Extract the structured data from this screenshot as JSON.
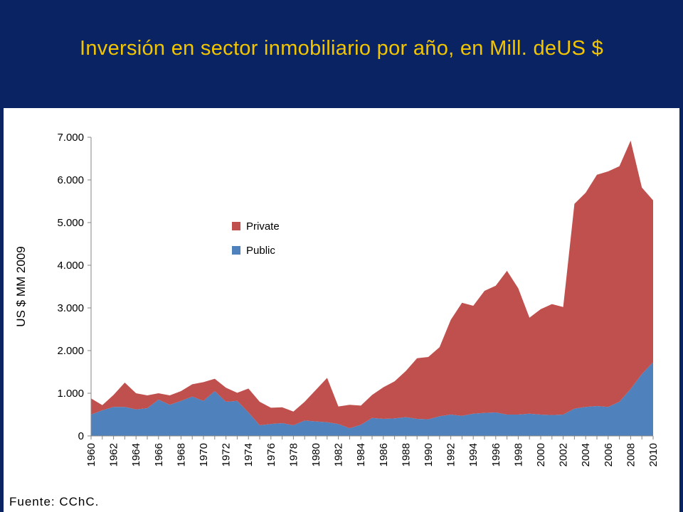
{
  "slide": {
    "title": "Inversión en sector inmobiliario por año, en Mill. deUS $",
    "title_color": "#f2c500",
    "background": "#0a2463",
    "source": "Fuente: CChC."
  },
  "chart_data": {
    "type": "area",
    "stacked": true,
    "title": "",
    "xlabel": "",
    "ylabel": "US $ MM 2009",
    "x": [
      1960,
      1961,
      1962,
      1963,
      1964,
      1965,
      1966,
      1967,
      1968,
      1969,
      1970,
      1971,
      1972,
      1973,
      1974,
      1975,
      1976,
      1977,
      1978,
      1979,
      1980,
      1981,
      1982,
      1983,
      1984,
      1985,
      1986,
      1987,
      1988,
      1989,
      1990,
      1991,
      1992,
      1993,
      1994,
      1995,
      1996,
      1997,
      1998,
      1999,
      2000,
      2001,
      2002,
      2003,
      2004,
      2005,
      2006,
      2007,
      2008,
      2009,
      2010
    ],
    "x_tick_labels": [
      "1960",
      "1962",
      "1964",
      "1966",
      "1968",
      "1970",
      "1972",
      "1974",
      "1976",
      "1978",
      "1980",
      "1982",
      "1984",
      "1986",
      "1988",
      "1990",
      "1992",
      "1994",
      "1996",
      "1998",
      "2000",
      "2002",
      "2004",
      "2006",
      "2008",
      "2010"
    ],
    "ylim": [
      0,
      7000
    ],
    "y_tick_labels": [
      "0",
      "1.000",
      "2.000",
      "3.000",
      "4.000",
      "5.000",
      "6.000",
      "7.000"
    ],
    "grid": false,
    "legend_position": "upper-left-center",
    "series": [
      {
        "name": "Public",
        "color": "#4f81bd",
        "values": [
          500,
          600,
          680,
          680,
          620,
          650,
          850,
          730,
          820,
          920,
          820,
          1050,
          800,
          820,
          550,
          250,
          280,
          300,
          250,
          360,
          340,
          320,
          280,
          180,
          260,
          420,
          400,
          410,
          440,
          400,
          390,
          460,
          500,
          470,
          520,
          540,
          550,
          500,
          500,
          520,
          500,
          490,
          500,
          640,
          680,
          700,
          680,
          800,
          1100,
          1450,
          1730
        ]
      },
      {
        "name": "Private",
        "color": "#c0504d",
        "values": [
          380,
          120,
          280,
          570,
          380,
          300,
          150,
          220,
          230,
          290,
          440,
          290,
          330,
          190,
          560,
          550,
          380,
          370,
          320,
          440,
          740,
          1040,
          410,
          550,
          450,
          540,
          740,
          870,
          1080,
          1420,
          1460,
          1620,
          2220,
          2650,
          2530,
          2860,
          2970,
          3370,
          2960,
          2250,
          2470,
          2600,
          2520,
          4800,
          5020,
          5420,
          5520,
          5520,
          5820,
          4370,
          3790
        ]
      }
    ]
  }
}
